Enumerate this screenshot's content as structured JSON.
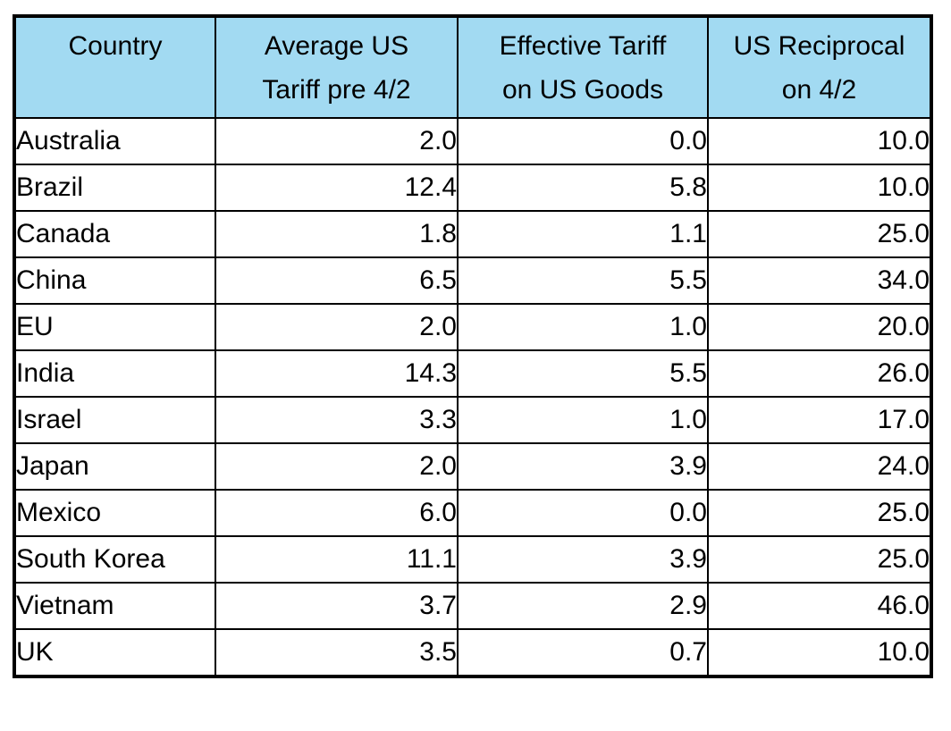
{
  "colors": {
    "header_bg": "#a2daf2",
    "border": "#000000",
    "text": "#000000",
    "row_bg": "#ffffff"
  },
  "header": {
    "columns": [
      {
        "line1": "Country",
        "line2": ""
      },
      {
        "line1": "Average US",
        "line2": "Tariff pre 4/2"
      },
      {
        "line1": "Effective Tariff",
        "line2": "on US Goods"
      },
      {
        "line1": "US Reciprocal",
        "line2": "on 4/2"
      }
    ]
  },
  "rows": [
    {
      "country": "Australia",
      "pre": "2.0",
      "eff": "0.0",
      "recip": "10.0"
    },
    {
      "country": "Brazil",
      "pre": "12.4",
      "eff": "5.8",
      "recip": "10.0"
    },
    {
      "country": "Canada",
      "pre": "1.8",
      "eff": "1.1",
      "recip": "25.0"
    },
    {
      "country": "China",
      "pre": "6.5",
      "eff": "5.5",
      "recip": "34.0"
    },
    {
      "country": "EU",
      "pre": "2.0",
      "eff": "1.0",
      "recip": "20.0"
    },
    {
      "country": "India",
      "pre": "14.3",
      "eff": "5.5",
      "recip": "26.0"
    },
    {
      "country": "Israel",
      "pre": "3.3",
      "eff": "1.0",
      "recip": "17.0"
    },
    {
      "country": "Japan",
      "pre": "2.0",
      "eff": "3.9",
      "recip": "24.0"
    },
    {
      "country": "Mexico",
      "pre": "6.0",
      "eff": "0.0",
      "recip": "25.0"
    },
    {
      "country": "South Korea",
      "pre": "11.1",
      "eff": "3.9",
      "recip": "25.0"
    },
    {
      "country": "Vietnam",
      "pre": "3.7",
      "eff": "2.9",
      "recip": "46.0"
    },
    {
      "country": "UK",
      "pre": "3.5",
      "eff": "0.7",
      "recip": "10.0"
    }
  ],
  "chart_data": {
    "type": "table",
    "columns": [
      "Country",
      "Average US Tariff pre 4/2",
      "Effective Tariff on US Goods",
      "US Reciprocal on 4/2"
    ],
    "rows": [
      [
        "Australia",
        2.0,
        0.0,
        10.0
      ],
      [
        "Brazil",
        12.4,
        5.8,
        10.0
      ],
      [
        "Canada",
        1.8,
        1.1,
        25.0
      ],
      [
        "China",
        6.5,
        5.5,
        34.0
      ],
      [
        "EU",
        2.0,
        1.0,
        20.0
      ],
      [
        "India",
        14.3,
        5.5,
        26.0
      ],
      [
        "Israel",
        3.3,
        1.0,
        17.0
      ],
      [
        "Japan",
        2.0,
        3.9,
        24.0
      ],
      [
        "Mexico",
        6.0,
        0.0,
        25.0
      ],
      [
        "South Korea",
        11.1,
        3.9,
        25.0
      ],
      [
        "Vietnam",
        3.7,
        2.9,
        46.0
      ],
      [
        "UK",
        3.5,
        0.7,
        10.0
      ]
    ]
  }
}
